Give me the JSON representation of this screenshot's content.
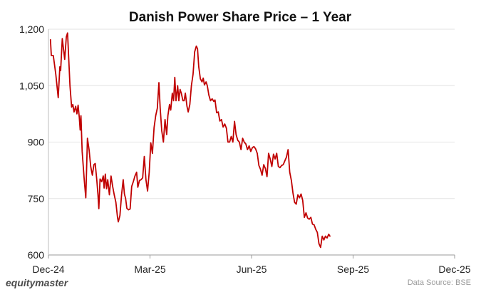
{
  "brand": "equitymaster",
  "source": "Data Source: BSE",
  "chart_data": {
    "type": "line",
    "title": "Danish Power Share Price – 1 Year",
    "xlabel": "",
    "ylabel": "",
    "ylim": [
      600,
      1200
    ],
    "yticks": [
      600,
      750,
      900,
      1050,
      1200
    ],
    "ytick_labels": [
      "600",
      "750",
      "900",
      "1,050",
      "1,200"
    ],
    "xticks": [
      {
        "label": "Dec-24",
        "t": 0
      },
      {
        "label": "Mar-25",
        "t": 0.25
      },
      {
        "label": "Jun-25",
        "t": 0.5
      },
      {
        "label": "Sep-25",
        "t": 0.75
      },
      {
        "label": "Dec-25",
        "t": 1.0
      }
    ],
    "grid": true,
    "series": [
      {
        "name": "Danish Power",
        "color": "#C00000",
        "points": [
          [
            0.005,
            1172
          ],
          [
            0.007,
            1130
          ],
          [
            0.012,
            1130
          ],
          [
            0.018,
            1080
          ],
          [
            0.024,
            1018
          ],
          [
            0.028,
            1100
          ],
          [
            0.03,
            1090
          ],
          [
            0.034,
            1175
          ],
          [
            0.04,
            1120
          ],
          [
            0.044,
            1180
          ],
          [
            0.047,
            1190
          ],
          [
            0.053,
            1050
          ],
          [
            0.057,
            993
          ],
          [
            0.06,
            1000
          ],
          [
            0.063,
            980
          ],
          [
            0.067,
            995
          ],
          [
            0.07,
            975
          ],
          [
            0.073,
            998
          ],
          [
            0.076,
            965
          ],
          [
            0.078,
            932
          ],
          [
            0.08,
            970
          ],
          [
            0.083,
            875
          ],
          [
            0.088,
            800
          ],
          [
            0.092,
            752
          ],
          [
            0.096,
            910
          ],
          [
            0.1,
            880
          ],
          [
            0.104,
            835
          ],
          [
            0.108,
            812
          ],
          [
            0.112,
            840
          ],
          [
            0.115,
            843
          ],
          [
            0.119,
            800
          ],
          [
            0.122,
            760
          ],
          [
            0.124,
            723
          ],
          [
            0.127,
            802
          ],
          [
            0.131,
            795
          ],
          [
            0.135,
            810
          ],
          [
            0.137,
            778
          ],
          [
            0.14,
            815
          ],
          [
            0.143,
            776
          ],
          [
            0.146,
            800
          ],
          [
            0.15,
            760
          ],
          [
            0.154,
            810
          ],
          [
            0.158,
            782
          ],
          [
            0.162,
            760
          ],
          [
            0.166,
            740
          ],
          [
            0.17,
            700
          ],
          [
            0.172,
            688
          ],
          [
            0.176,
            705
          ],
          [
            0.18,
            760
          ],
          [
            0.184,
            800
          ],
          [
            0.187,
            762
          ],
          [
            0.19,
            750
          ],
          [
            0.193,
            724
          ],
          [
            0.197,
            720
          ],
          [
            0.201,
            722
          ],
          [
            0.205,
            782
          ],
          [
            0.209,
            795
          ],
          [
            0.213,
            810
          ],
          [
            0.217,
            820
          ],
          [
            0.22,
            780
          ],
          [
            0.224,
            798
          ],
          [
            0.228,
            800
          ],
          [
            0.232,
            805
          ],
          [
            0.236,
            862
          ],
          [
            0.24,
            800
          ],
          [
            0.244,
            770
          ],
          [
            0.248,
            820
          ],
          [
            0.252,
            898
          ],
          [
            0.256,
            870
          ],
          [
            0.26,
            938
          ],
          [
            0.264,
            970
          ],
          [
            0.268,
            990
          ],
          [
            0.272,
            1058
          ],
          [
            0.275,
            990
          ],
          [
            0.279,
            930
          ],
          [
            0.283,
            900
          ],
          [
            0.287,
            960
          ],
          [
            0.291,
            920
          ],
          [
            0.294,
            970
          ],
          [
            0.298,
            1000
          ],
          [
            0.301,
            985
          ],
          [
            0.305,
            1030
          ],
          [
            0.308,
            1010
          ],
          [
            0.311,
            1072
          ],
          [
            0.314,
            1010
          ],
          [
            0.318,
            1050
          ],
          [
            0.321,
            1010
          ],
          [
            0.324,
            1040
          ],
          [
            0.327,
            1030
          ],
          [
            0.331,
            1010
          ],
          [
            0.334,
            1010
          ],
          [
            0.337,
            1030
          ],
          [
            0.341,
            995
          ],
          [
            0.344,
            980
          ],
          [
            0.348,
            1000
          ],
          [
            0.352,
            1050
          ],
          [
            0.356,
            1080
          ],
          [
            0.36,
            1140
          ],
          [
            0.364,
            1155
          ],
          [
            0.367,
            1148
          ],
          [
            0.37,
            1100
          ],
          [
            0.374,
            1068
          ],
          [
            0.378,
            1060
          ],
          [
            0.381,
            1070
          ],
          [
            0.384,
            1052
          ],
          [
            0.388,
            1060
          ],
          [
            0.391,
            1050
          ],
          [
            0.395,
            1025
          ],
          [
            0.399,
            1010
          ],
          [
            0.403,
            1015
          ],
          [
            0.407,
            1008
          ],
          [
            0.41,
            1012
          ],
          [
            0.414,
            978
          ],
          [
            0.418,
            980
          ],
          [
            0.422,
            956
          ],
          [
            0.426,
            960
          ],
          [
            0.43,
            940
          ],
          [
            0.434,
            948
          ],
          [
            0.438,
            937
          ],
          [
            0.442,
            900
          ],
          [
            0.446,
            900
          ],
          [
            0.45,
            915
          ],
          [
            0.454,
            900
          ],
          [
            0.458,
            955
          ],
          [
            0.462,
            920
          ],
          [
            0.466,
            905
          ],
          [
            0.47,
            900
          ],
          [
            0.474,
            880
          ],
          [
            0.478,
            910
          ],
          [
            0.482,
            900
          ],
          [
            0.486,
            895
          ],
          [
            0.49,
            880
          ],
          [
            0.494,
            890
          ],
          [
            0.498,
            875
          ],
          [
            0.502,
            885
          ],
          [
            0.506,
            888
          ],
          [
            0.51,
            882
          ],
          [
            0.514,
            870
          ],
          [
            0.518,
            838
          ],
          [
            0.522,
            828
          ],
          [
            0.526,
            812
          ],
          [
            0.53,
            840
          ],
          [
            0.534,
            830
          ],
          [
            0.538,
            808
          ],
          [
            0.542,
            870
          ],
          [
            0.546,
            855
          ],
          [
            0.55,
            835
          ],
          [
            0.554,
            868
          ],
          [
            0.558,
            855
          ],
          [
            0.562,
            870
          ],
          [
            0.566,
            835
          ],
          [
            0.57,
            832
          ],
          [
            0.574,
            838
          ],
          [
            0.578,
            840
          ],
          [
            0.582,
            850
          ],
          [
            0.586,
            860
          ],
          [
            0.59,
            880
          ],
          [
            0.594,
            820
          ],
          [
            0.598,
            798
          ],
          [
            0.602,
            765
          ],
          [
            0.606,
            740
          ],
          [
            0.61,
            735
          ],
          [
            0.614,
            760
          ],
          [
            0.618,
            752
          ],
          [
            0.622,
            762
          ],
          [
            0.626,
            745
          ],
          [
            0.63,
            700
          ],
          [
            0.634,
            712
          ],
          [
            0.638,
            698
          ],
          [
            0.642,
            695
          ],
          [
            0.646,
            700
          ],
          [
            0.65,
            682
          ],
          [
            0.654,
            680
          ],
          [
            0.658,
            668
          ],
          [
            0.662,
            660
          ],
          [
            0.666,
            630
          ],
          [
            0.67,
            620
          ],
          [
            0.674,
            650
          ],
          [
            0.678,
            640
          ],
          [
            0.682,
            650
          ],
          [
            0.686,
            645
          ],
          [
            0.69,
            655
          ],
          [
            0.693,
            650
          ]
        ]
      }
    ]
  }
}
